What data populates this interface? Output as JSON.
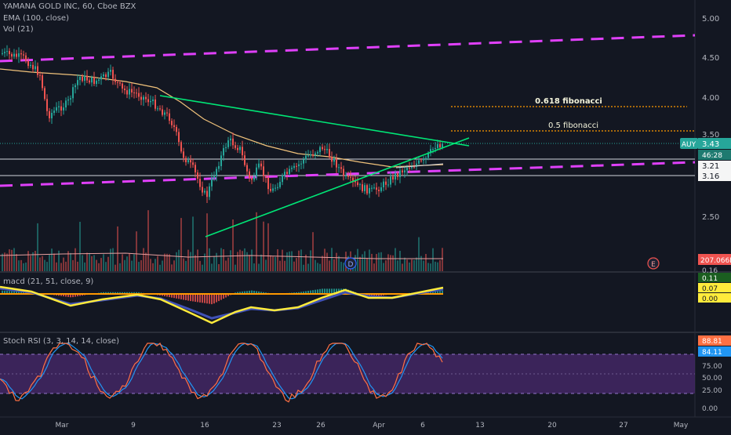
{
  "header": {
    "symbol_line": "YAMANA GOLD INC, 60, Cboe BZX",
    "ema_label": "EMA (100, close)",
    "vol_label": "Vol (21)"
  },
  "price_axis": {
    "ticks": [
      "5.00",
      "4.50",
      "4.00",
      "3.50",
      "2.50"
    ],
    "symbol_badge": "AUY",
    "last_price": "3.43",
    "countdown": "46:28",
    "level_a": "3.21",
    "level_b": "3.16",
    "volume_value": "207.066K"
  },
  "macd": {
    "label": "macd (21, 51, close, 9)",
    "axis_cut": "0.16",
    "badge_1": "0.11",
    "badge_2": "0.07",
    "badge_3": "0.00"
  },
  "stoch": {
    "label": "Stoch RSI (3, 3, 14, 14, close)",
    "badge_k": "88.81",
    "badge_d": "84.11",
    "ticks": [
      "75.00",
      "50.00",
      "25.00",
      "0.00"
    ]
  },
  "drawings": {
    "fib_0618": "0.618 fibonacci",
    "fib_05": "0.5 fibonacci"
  },
  "events": {
    "dividend": "D",
    "earnings": "E"
  },
  "x_axis": {
    "labels": [
      "Mar",
      "9",
      "16",
      "23",
      "26",
      "Apr",
      "6",
      "13",
      "20",
      "27",
      "May"
    ]
  },
  "colors": {
    "background": "#131722",
    "up": "#26a69a",
    "down": "#ef5350",
    "trend_channel": "#e040fb",
    "triangle": "#00e676",
    "ema": "#f0c27b",
    "fib": "#ff9800",
    "macd_line": "#ffeb3b",
    "signal_line": "#3f51b5",
    "stoch_k": "#ff7043",
    "stoch_d": "#2196f3",
    "stoch_band": "#4a2a6e"
  }
}
